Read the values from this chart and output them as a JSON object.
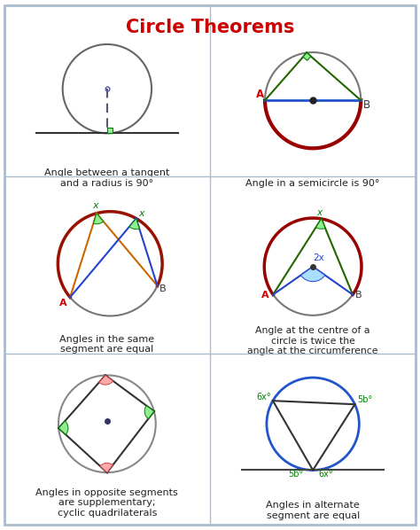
{
  "title": "Circle Theorems",
  "title_color": "#cc0000",
  "bg_color": "#ffffff",
  "border_color": "#aabbcc",
  "grid_line_color": "#aabbcc",
  "text_color": "#222222",
  "captions": [
    "Angle between a tangent\nand a radius is 90°",
    "Angle in a semicircle is 90°",
    "Angles in the same\nsegment are equal",
    "Angle at the centre of a\ncircle is twice the\nangle at the circumference",
    "Angles in opposite segments\nare supplementary;\ncyclic quadrilaterals",
    "Angles in alternate\nsegment are equal"
  ]
}
